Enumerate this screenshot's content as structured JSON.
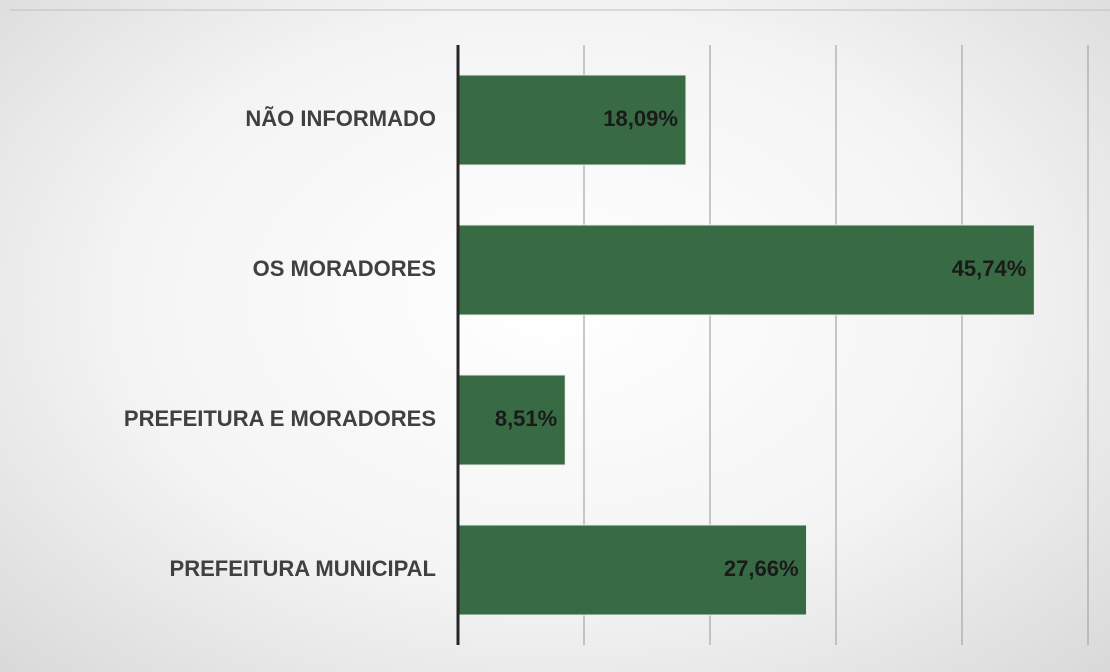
{
  "chart_data": {
    "type": "barh",
    "categories": [
      "NÃO INFORMADO",
      "OS MORADORES",
      "PREFEITURA E MORADORES",
      "PREFEITURA MUNICIPAL"
    ],
    "values": [
      18.09,
      45.74,
      8.51,
      27.66
    ],
    "value_labels": [
      "18,09%",
      "45,74%",
      "8,51%",
      "27,66%"
    ],
    "color": "#386a44",
    "xlim": [
      0,
      50
    ],
    "xticks": [
      0,
      10,
      20,
      30,
      40,
      50
    ],
    "grid": true
  }
}
